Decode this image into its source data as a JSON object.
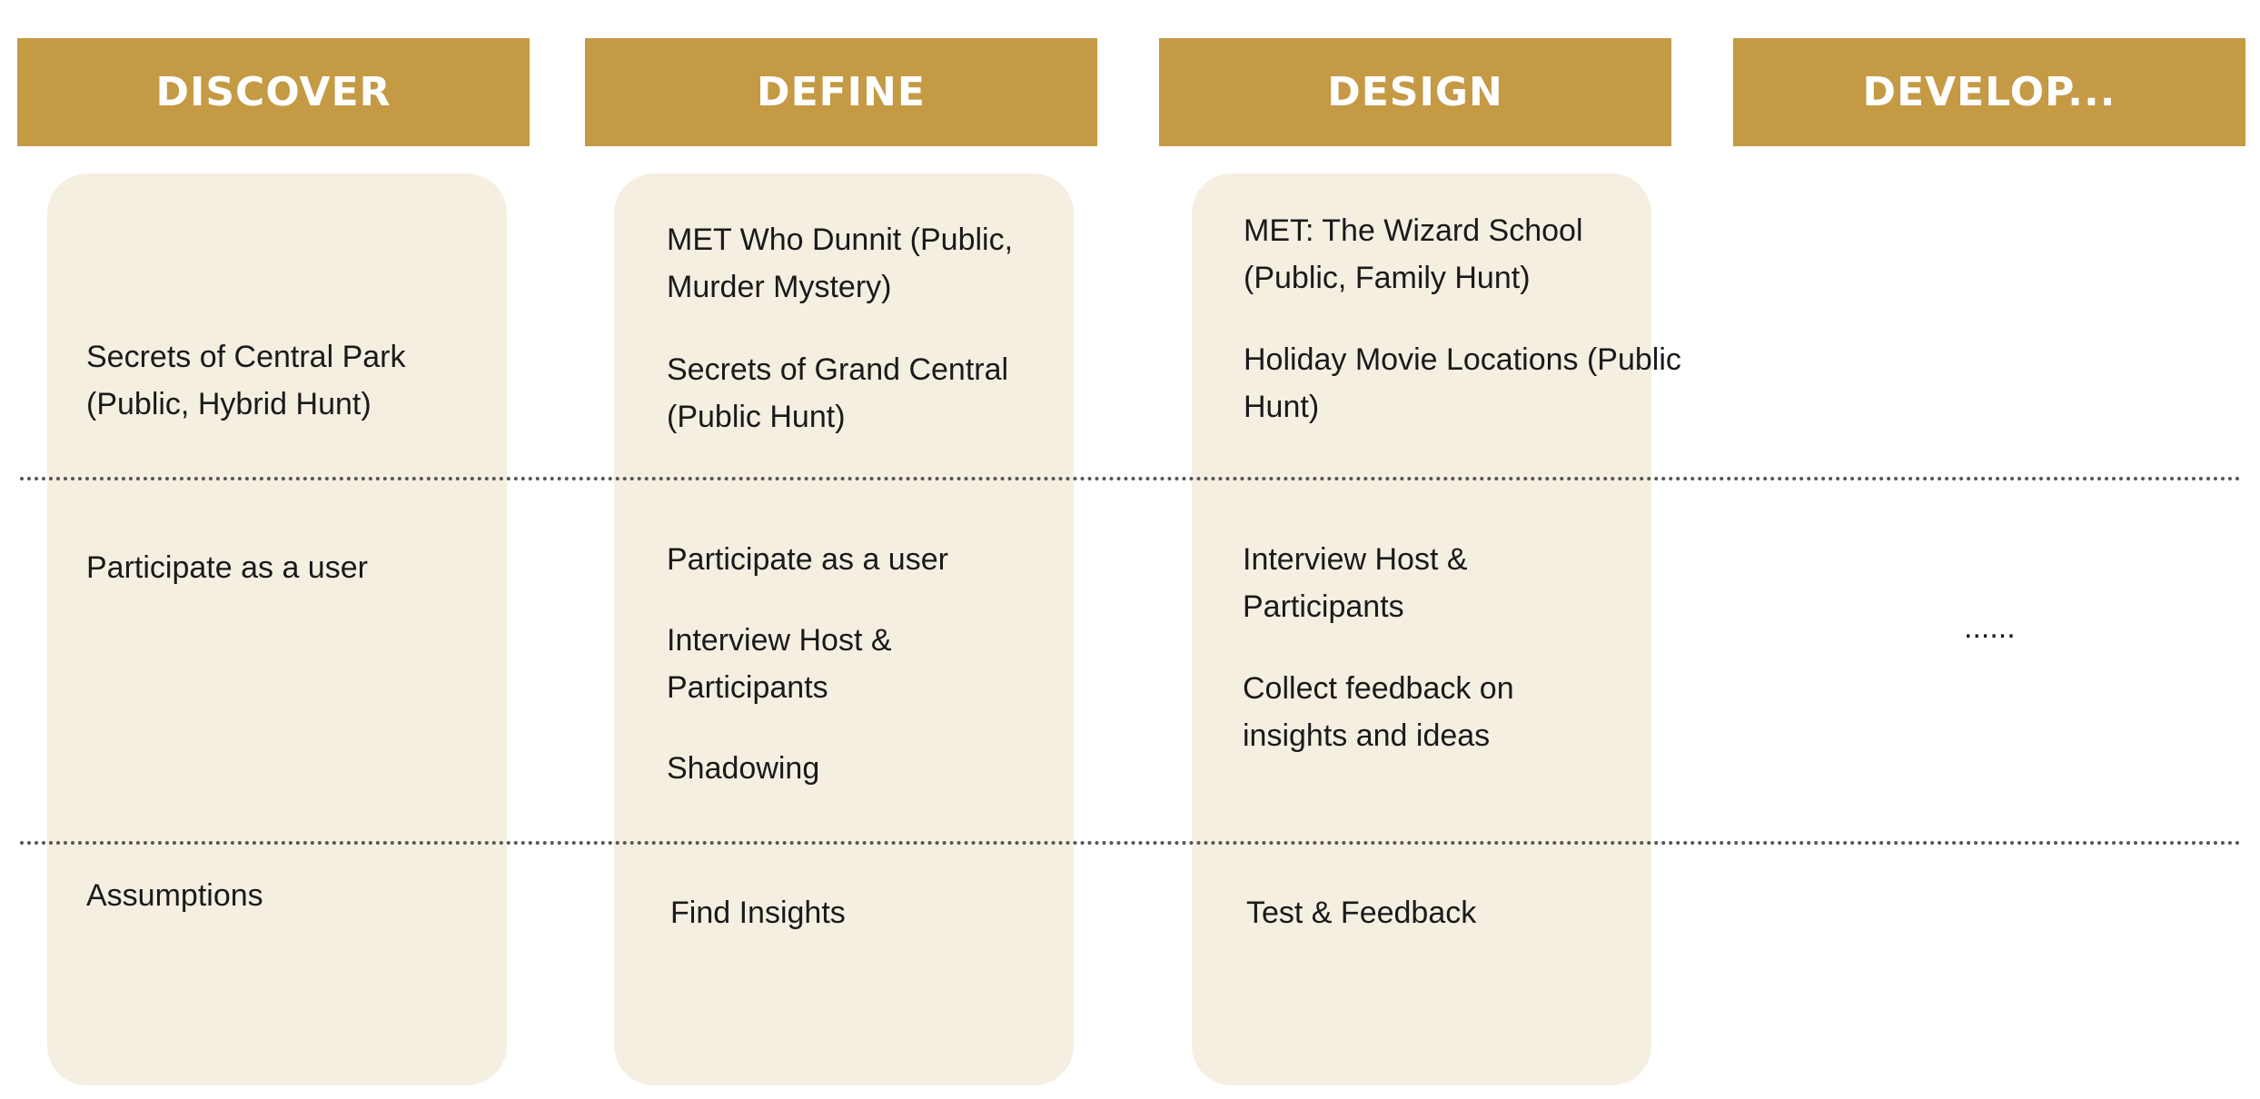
{
  "headers": {
    "discover": "DISCOVER",
    "define": "DEFINE",
    "design": "DESIGN",
    "develop": "DEVELOP..."
  },
  "discover": {
    "hunt_line1": "Secrets of Central Park",
    "hunt_line2": "(Public, Hybrid Hunt)",
    "method": "Participate as a user",
    "outcome": "Assumptions"
  },
  "define": {
    "hunt1_line1": "MET Who Dunnit (Public,",
    "hunt1_line2": "Murder Mystery)",
    "hunt2_line1": "Secrets of Grand Central",
    "hunt2_line2": "(Public Hunt)",
    "method1": "Participate as a user",
    "method2_line1": "Interview Host &",
    "method2_line2": "Participants",
    "method3": "Shadowing",
    "outcome": "Find Insights"
  },
  "design": {
    "hunt1_line1": "MET: The Wizard School",
    "hunt1_line2": "(Public, Family Hunt)",
    "hunt2_line1": "Holiday Movie Locations (Public",
    "hunt2_line2": "Hunt)",
    "method1_line1": "Interview Host &",
    "method1_line2": "Participants",
    "method2_line1": "Collect feedback on",
    "method2_line2": "insights and ideas",
    "outcome": "Test & Feedback"
  },
  "develop": {
    "ellipsis": "......"
  },
  "colors": {
    "header_bg": "#C49A45",
    "header_text": "#FFFFFF",
    "card_bg": "#F5EFE2",
    "divider": "#555555"
  }
}
